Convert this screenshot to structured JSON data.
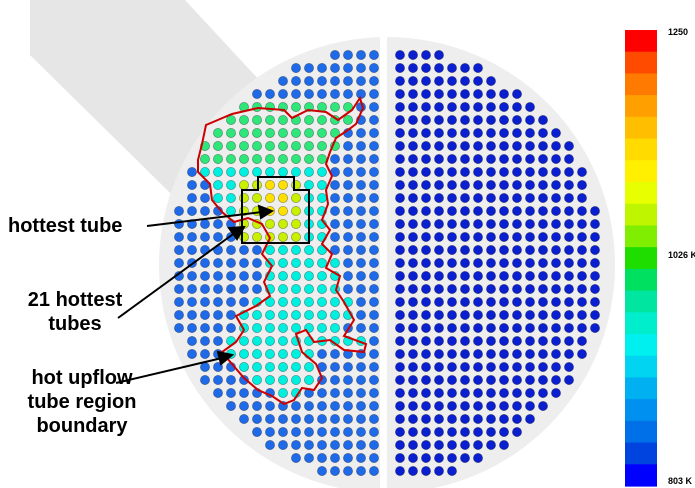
{
  "annotations": {
    "hottest_tube": "hottest tube",
    "hottest_21": [
      "21 hottest",
      "tubes"
    ],
    "boundary": [
      "hot upflow",
      "tube region",
      "boundary"
    ]
  },
  "colorbar": {
    "max_label": "1250",
    "mid_label": "1026 K",
    "min_label": "803 K",
    "max_value": 1250,
    "mid_value": 1026,
    "min_value": 803,
    "colors": [
      "#ff0000",
      "#ff4b00",
      "#ff7a00",
      "#ff9f00",
      "#ffbe00",
      "#ffdb00",
      "#fff000",
      "#e8ff00",
      "#c0f500",
      "#80ee00",
      "#20dd00",
      "#00e060",
      "#00e6a0",
      "#00eecc",
      "#00f0ef",
      "#00d4f0",
      "#00b0f0",
      "#0090f0",
      "#0070e8",
      "#0044e0",
      "#0000ff"
    ]
  },
  "colors": {
    "cold_tube": "#0a1fd0",
    "left_tube": "#1e6ae8",
    "hot_region": "#00f0e0",
    "warm_region": "#2ee67a",
    "hottest_cluster": "#c8f000",
    "hottest_tube": "#ffe000",
    "boundary_line": "#cc0000",
    "sheet_gray": "#eeeeee"
  }
}
